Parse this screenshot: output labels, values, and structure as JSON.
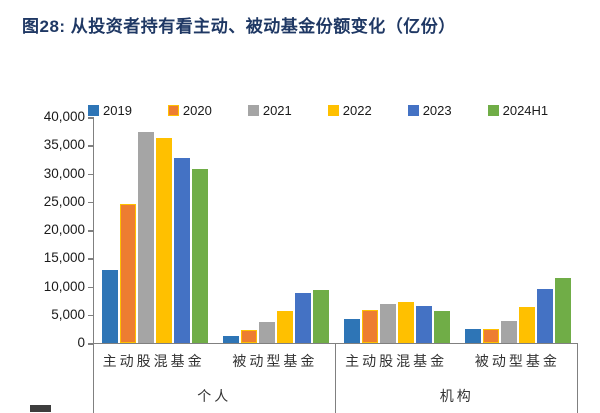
{
  "page": {
    "title": "图28: 从投资者持有看主动、被动基金份额变化（亿份）"
  },
  "colors": {
    "title_text": "#1F3864",
    "axis_line": "#808080"
  },
  "chart_data": {
    "type": "bar",
    "title": "图28: 从投资者持有看主动、被动基金份额变化（亿份）",
    "unit": "亿份",
    "ylim": [
      0,
      40000
    ],
    "ytick_step": 5000,
    "ytick_labels": [
      "40,000",
      "35,000",
      "30,000",
      "25,000",
      "20,000",
      "15,000",
      "10,000",
      "5,000",
      "0"
    ],
    "grid": false,
    "legend_position": "top",
    "group_labels": [
      "主动股混基金",
      "被动型基金",
      "主动股混基金",
      "被动型基金"
    ],
    "super_categories": [
      "个人",
      "机构"
    ],
    "series": [
      {
        "name": "2019",
        "color": "#2E75B6",
        "values": [
          13000,
          1200,
          4200,
          2500
        ]
      },
      {
        "name": "2020",
        "color": "#ED7D31",
        "border": "#FFC000",
        "values": [
          24600,
          2300,
          5800,
          2400
        ]
      },
      {
        "name": "2021",
        "color": "#A5A5A5",
        "values": [
          37300,
          3700,
          6900,
          3900
        ]
      },
      {
        "name": "2022",
        "color": "#FFC000",
        "values": [
          36300,
          5600,
          7200,
          6400
        ]
      },
      {
        "name": "2023",
        "color": "#4472C4",
        "values": [
          32700,
          8800,
          6500,
          9600
        ]
      },
      {
        "name": "2024H1",
        "color": "#70AD47",
        "values": [
          30800,
          9300,
          5700,
          11500
        ]
      }
    ]
  }
}
